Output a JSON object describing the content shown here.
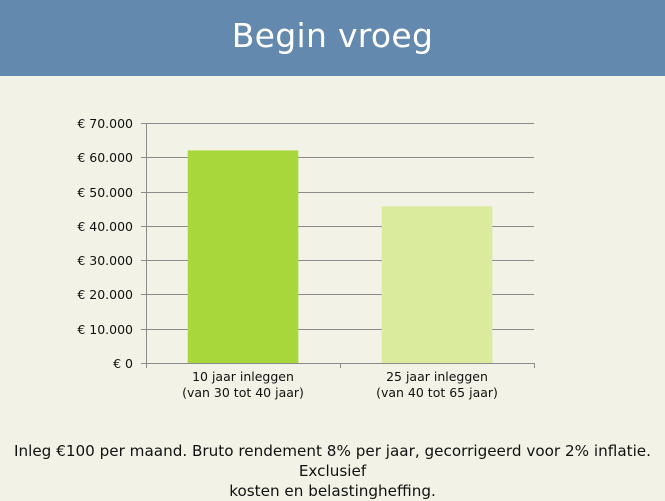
{
  "slide": {
    "title": "Begin vroeg"
  },
  "chart_data": {
    "type": "bar",
    "categories": [
      [
        "10 jaar inleggen",
        "(van 30 tot 40 jaar)"
      ],
      [
        "25 jaar inleggen",
        "(van 40 tot 65 jaar)"
      ]
    ],
    "values": [
      62000,
      45700
    ],
    "bar_colors": [
      "#a8d73c",
      "#dbeb9e"
    ],
    "ylim": [
      0,
      70000
    ],
    "yticks": [
      0,
      10000,
      20000,
      30000,
      40000,
      50000,
      60000,
      70000
    ],
    "ytick_labels": [
      "€ 0",
      "€ 10.000",
      "€ 20.000",
      "€ 30.000",
      "€ 40.000",
      "€ 50.000",
      "€ 60.000",
      "€ 70.000"
    ],
    "grid": true,
    "gridline_color": "#8b8b8b"
  },
  "footnote": {
    "line1": "Inleg €100 per maand. Bruto rendement 8% per jaar, gecorrigeerd voor 2% inflatie. Exclusief",
    "line2": "kosten en belastingheffing."
  }
}
